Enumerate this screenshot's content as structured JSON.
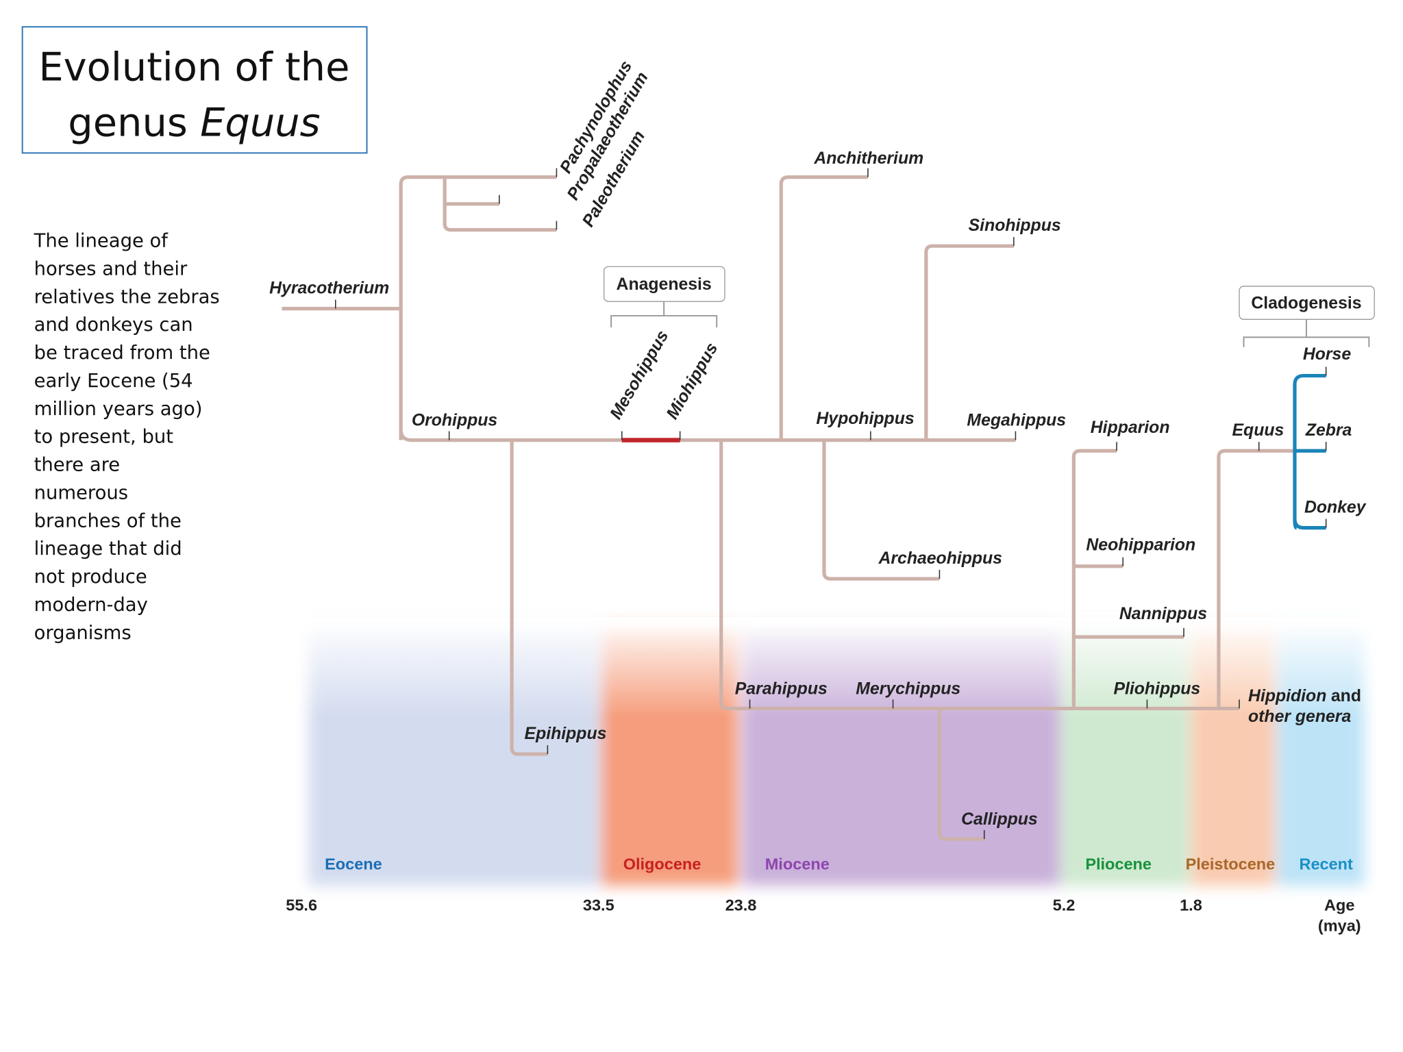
{
  "header": {
    "title": {
      "line1": "Evolution of the",
      "line2": "genus",
      "italic": "Equus"
    }
  },
  "description": [
    "The lineage of",
    "horses and their",
    "relatives the zebras",
    "and donkeys can",
    "be traced from the",
    "early Eocene (54",
    "million years ago)",
    "to present, but",
    "there are",
    "numerous",
    "branches of the",
    "lineage that did",
    "not produce",
    "modern-day",
    "organisms"
  ],
  "callouts": {
    "anagenesis": "Anagenesis",
    "cladogenesis": "Cladogenesis"
  },
  "taxa": [
    "Hyracotherium",
    "Pachynolophus",
    "Propalaeotherium",
    "Paleotherium",
    "Orohippus",
    "Mesohippus",
    "Miohippus",
    "Anchitherium",
    "Sinohippus",
    "Hypohippus",
    "Megahippus",
    "Epihippus",
    "Archaeohippus",
    "Parahippus",
    "Merychippus",
    "Callippus",
    "Hipparion",
    "Neohipparion",
    "Nannippus",
    "Pliohippus",
    "Equus",
    "Horse",
    "Zebra",
    "Donkey"
  ],
  "hippidion": {
    "genus": "Hippidion",
    "and": "and",
    "rest": "other genera"
  },
  "epochs": [
    "Eocene",
    "Oligocene",
    "Miocene",
    "Pliocene",
    "Pleistocene",
    "Recent"
  ],
  "ages": [
    "55.6",
    "33.5",
    "23.8",
    "5.2",
    "1.8"
  ],
  "axis_label": [
    "Age",
    "(mya)"
  ]
}
